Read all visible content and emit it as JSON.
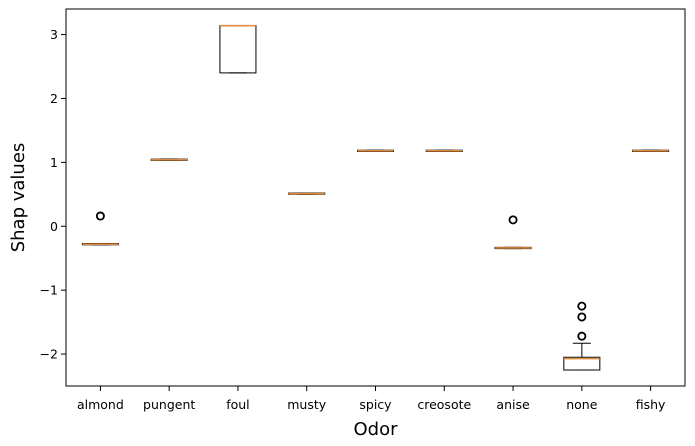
{
  "chart_data": {
    "type": "box",
    "xlabel": "Odor",
    "ylabel": "Shap values",
    "ylim": [
      -2.5,
      3.4
    ],
    "yticks": [
      {
        "value": 3,
        "label": "3"
      },
      {
        "value": 2,
        "label": "2"
      },
      {
        "value": 1,
        "label": "1"
      },
      {
        "value": 0,
        "label": "0"
      },
      {
        "value": -1,
        "label": "−1"
      },
      {
        "value": -2,
        "label": "−2"
      }
    ],
    "categories": [
      "almond",
      "pungent",
      "foul",
      "musty",
      "spicy",
      "creosote",
      "anise",
      "none",
      "fishy"
    ],
    "boxes": [
      {
        "q1": -0.29,
        "median": -0.28,
        "q3": -0.27,
        "whisker_low": -0.29,
        "whisker_high": -0.27,
        "outliers": [
          0.16
        ]
      },
      {
        "q1": 1.03,
        "median": 1.04,
        "q3": 1.05,
        "whisker_low": 1.03,
        "whisker_high": 1.05,
        "outliers": []
      },
      {
        "q1": 2.4,
        "median": 3.14,
        "q3": 3.14,
        "whisker_low": 2.4,
        "whisker_high": 3.14,
        "outliers": []
      },
      {
        "q1": 0.5,
        "median": 0.51,
        "q3": 0.52,
        "whisker_low": 0.5,
        "whisker_high": 0.52,
        "outliers": []
      },
      {
        "q1": 1.17,
        "median": 1.18,
        "q3": 1.19,
        "whisker_low": 1.17,
        "whisker_high": 1.19,
        "outliers": []
      },
      {
        "q1": 1.17,
        "median": 1.18,
        "q3": 1.19,
        "whisker_low": 1.17,
        "whisker_high": 1.19,
        "outliers": []
      },
      {
        "q1": -0.35,
        "median": -0.34,
        "q3": -0.33,
        "whisker_low": -0.35,
        "whisker_high": -0.33,
        "outliers": [
          0.1
        ]
      },
      {
        "q1": -2.25,
        "median": -2.07,
        "q3": -2.05,
        "whisker_low": -2.25,
        "whisker_high": -1.83,
        "outliers": [
          -1.72,
          -1.42,
          -1.25
        ]
      },
      {
        "q1": 1.17,
        "median": 1.18,
        "q3": 1.19,
        "whisker_low": 1.17,
        "whisker_high": 1.19,
        "outliers": []
      }
    ],
    "colors": {
      "box": "#000000",
      "median": "#e08b3c",
      "outlier_edge": "#000000"
    },
    "grid": false,
    "legend": "none"
  }
}
